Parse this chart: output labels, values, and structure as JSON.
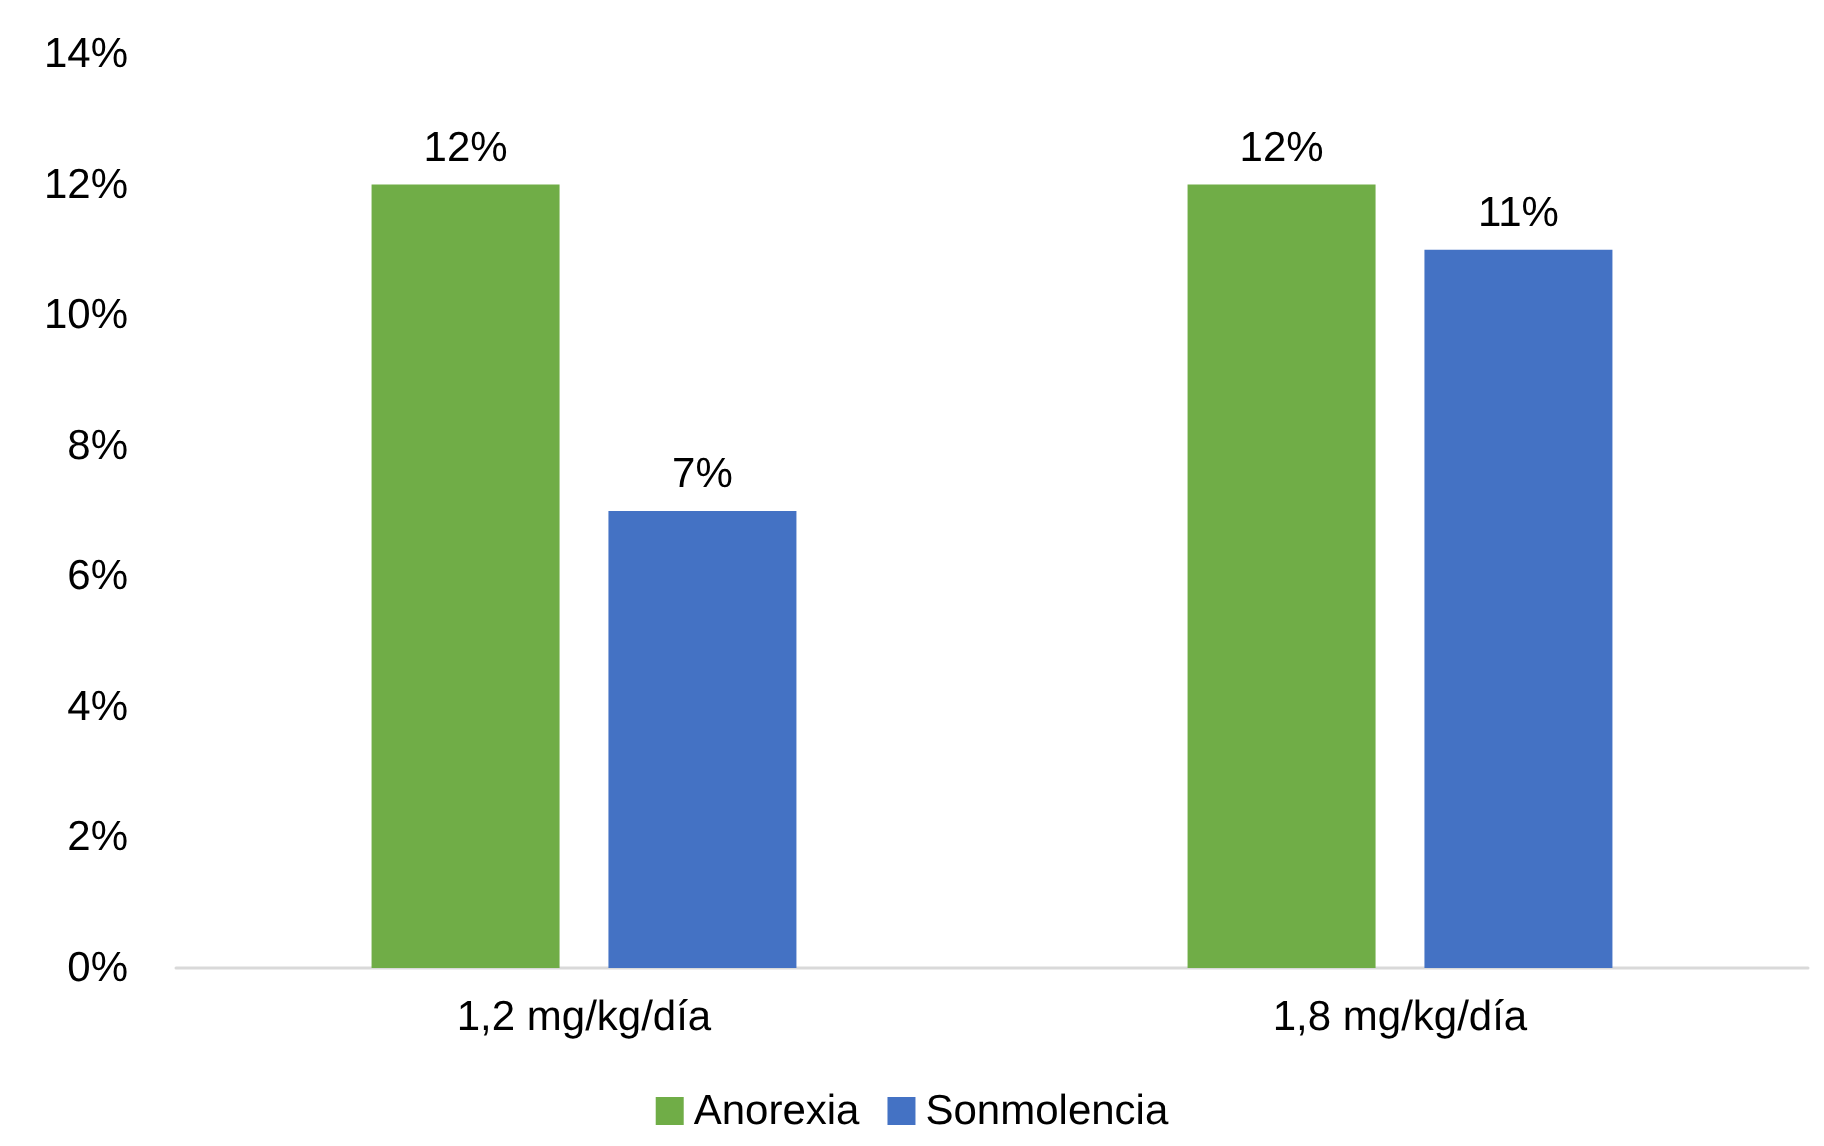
{
  "chart_data": {
    "type": "bar",
    "categories": [
      "1,2 mg/kg/día",
      "1,8 mg/kg/día"
    ],
    "series": [
      {
        "name": "Anorexia",
        "color": "#70ad47",
        "values": [
          12,
          12
        ],
        "value_labels": [
          "12%",
          "12%"
        ]
      },
      {
        "name": "Sonmolencia",
        "color": "#4472c4",
        "values": [
          7,
          11
        ],
        "value_labels": [
          "7%",
          "11%"
        ]
      }
    ],
    "ylim": [
      0,
      14
    ],
    "yticks": [
      {
        "value": 0,
        "label": "0%"
      },
      {
        "value": 2,
        "label": "2%"
      },
      {
        "value": 4,
        "label": "4%"
      },
      {
        "value": 6,
        "label": "6%"
      },
      {
        "value": 8,
        "label": "8%"
      },
      {
        "value": 10,
        "label": "10%"
      },
      {
        "value": 12,
        "label": "12%"
      },
      {
        "value": 14,
        "label": "14%"
      }
    ],
    "grid": false,
    "legend": "bottom"
  }
}
